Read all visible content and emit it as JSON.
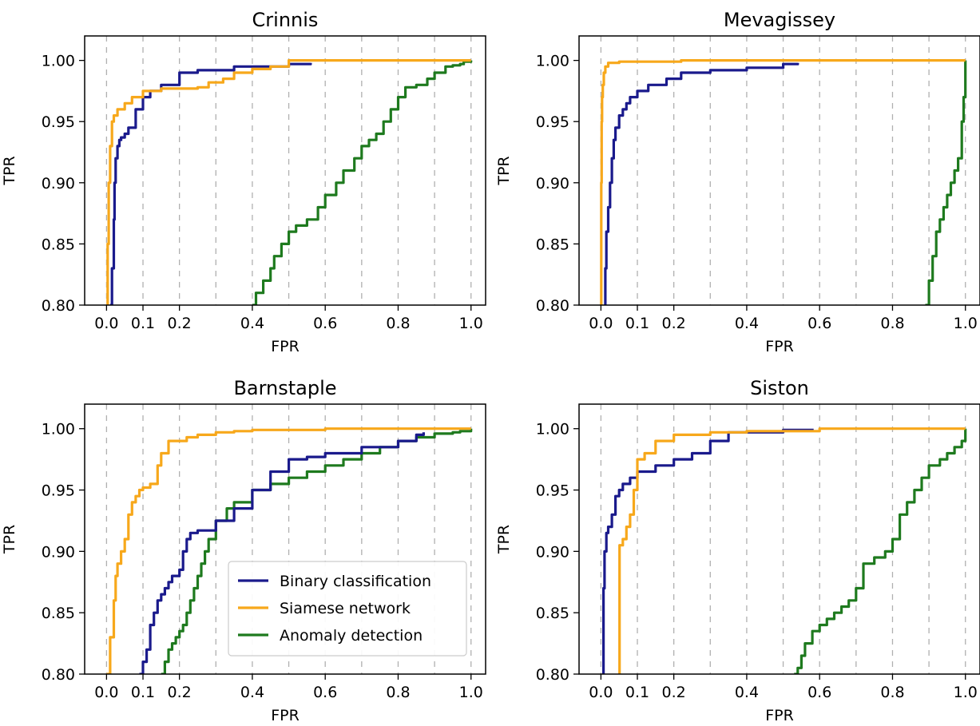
{
  "colors": {
    "binary": "#1a1a8c",
    "siamese": "#f7a81b",
    "anomaly": "#1e7a1e",
    "gridline": "#b0b0b0"
  },
  "legend": {
    "entries": [
      {
        "name": "Binary classification",
        "color": "#1a1a8c"
      },
      {
        "name": "Siamese network",
        "color": "#f7a81b"
      },
      {
        "name": "Anomaly detection",
        "color": "#1e7a1e"
      }
    ],
    "placement": "lower-right of Barnstaple panel"
  },
  "chart_data": [
    {
      "type": "line",
      "title": "Crinnis",
      "xlabel": "FPR",
      "ylabel": "TPR",
      "xlim": [
        -0.06,
        1.04
      ],
      "ylim": [
        0.8,
        1.02
      ],
      "xticks": [
        "0.0",
        "0.1",
        "0.2",
        "0.4",
        "0.6",
        "0.8",
        "1.0"
      ],
      "yticks": [
        "0.80",
        "0.85",
        "0.90",
        "0.95",
        "1.00"
      ],
      "vgrid": [
        0.0,
        0.1,
        0.2,
        0.3,
        0.4,
        0.5,
        0.6,
        0.7,
        0.8,
        0.9,
        1.0
      ],
      "legend": false,
      "series": [
        {
          "key": "binary",
          "x": [
            0.01,
            0.015,
            0.02,
            0.022,
            0.025,
            0.03,
            0.035,
            0.04,
            0.05,
            0.06,
            0.08,
            0.1,
            0.12,
            0.15,
            0.2,
            0.25,
            0.35,
            0.5,
            0.56
          ],
          "y": [
            0.8,
            0.83,
            0.87,
            0.9,
            0.92,
            0.93,
            0.935,
            0.937,
            0.94,
            0.945,
            0.96,
            0.97,
            0.975,
            0.98,
            0.99,
            0.992,
            0.995,
            0.997,
            0.998
          ]
        },
        {
          "key": "siamese",
          "x": [
            0.0,
            0.003,
            0.006,
            0.01,
            0.015,
            0.02,
            0.03,
            0.05,
            0.07,
            0.1,
            0.15,
            0.25,
            0.28,
            0.32,
            0.35,
            0.4,
            0.45,
            0.5,
            0.6,
            0.8,
            1.0
          ],
          "y": [
            0.8,
            0.85,
            0.9,
            0.93,
            0.95,
            0.955,
            0.96,
            0.965,
            0.97,
            0.975,
            0.977,
            0.978,
            0.982,
            0.985,
            0.99,
            0.993,
            0.995,
            1.0,
            1.0,
            1.0,
            1.0
          ]
        },
        {
          "key": "anomaly",
          "x": [
            0.4,
            0.41,
            0.43,
            0.45,
            0.46,
            0.48,
            0.5,
            0.52,
            0.55,
            0.58,
            0.6,
            0.63,
            0.65,
            0.68,
            0.7,
            0.72,
            0.74,
            0.76,
            0.78,
            0.8,
            0.82,
            0.85,
            0.88,
            0.9,
            0.93,
            0.95,
            0.97,
            0.98,
            1.0
          ],
          "y": [
            0.8,
            0.81,
            0.82,
            0.83,
            0.84,
            0.85,
            0.86,
            0.865,
            0.87,
            0.88,
            0.89,
            0.9,
            0.91,
            0.92,
            0.93,
            0.935,
            0.94,
            0.95,
            0.96,
            0.97,
            0.978,
            0.98,
            0.985,
            0.99,
            0.995,
            0.996,
            0.997,
            0.999,
            1.0
          ]
        }
      ]
    },
    {
      "type": "line",
      "title": "Mevagissey",
      "xlabel": "FPR",
      "ylabel": "TPR",
      "xlim": [
        -0.06,
        1.04
      ],
      "ylim": [
        0.8,
        1.02
      ],
      "xticks": [
        "0.0",
        "0.1",
        "0.2",
        "0.4",
        "0.6",
        "0.8",
        "1.0"
      ],
      "yticks": [
        "0.80",
        "0.85",
        "0.90",
        "0.95",
        "1.00"
      ],
      "vgrid": [
        0.0,
        0.1,
        0.2,
        0.3,
        0.4,
        0.5,
        0.6,
        0.7,
        0.8,
        0.9,
        1.0
      ],
      "legend": false,
      "series": [
        {
          "key": "binary",
          "x": [
            0.01,
            0.012,
            0.015,
            0.02,
            0.025,
            0.03,
            0.035,
            0.04,
            0.05,
            0.06,
            0.07,
            0.08,
            0.1,
            0.13,
            0.18,
            0.22,
            0.3,
            0.4,
            0.5,
            0.54
          ],
          "y": [
            0.8,
            0.83,
            0.86,
            0.88,
            0.9,
            0.92,
            0.935,
            0.945,
            0.955,
            0.96,
            0.965,
            0.97,
            0.975,
            0.98,
            0.985,
            0.99,
            0.992,
            0.994,
            0.997,
            0.998
          ]
        },
        {
          "key": "siamese",
          "x": [
            0.0,
            0.001,
            0.002,
            0.003,
            0.005,
            0.008,
            0.012,
            0.02,
            0.05,
            0.2,
            0.22,
            0.5,
            1.0
          ],
          "y": [
            0.8,
            0.9,
            0.95,
            0.97,
            0.98,
            0.99,
            0.995,
            0.998,
            0.999,
            0.999,
            1.0,
            1.0,
            1.0
          ]
        },
        {
          "key": "anomaly",
          "x": [
            0.89,
            0.9,
            0.91,
            0.92,
            0.93,
            0.94,
            0.95,
            0.96,
            0.97,
            0.98,
            0.99,
            0.995,
            1.0
          ],
          "y": [
            0.8,
            0.82,
            0.84,
            0.86,
            0.87,
            0.88,
            0.89,
            0.9,
            0.91,
            0.92,
            0.95,
            0.97,
            1.0
          ]
        }
      ]
    },
    {
      "type": "line",
      "title": "Barnstaple",
      "xlabel": "FPR",
      "ylabel": "TPR",
      "xlim": [
        -0.06,
        1.04
      ],
      "ylim": [
        0.8,
        1.02
      ],
      "xticks": [
        "0.0",
        "0.1",
        "0.2",
        "0.4",
        "0.6",
        "0.8",
        "1.0"
      ],
      "yticks": [
        "0.80",
        "0.85",
        "0.90",
        "0.95",
        "1.00"
      ],
      "vgrid": [
        0.0,
        0.1,
        0.2,
        0.3,
        0.4,
        0.5,
        0.6,
        0.7,
        0.8,
        0.9,
        1.0
      ],
      "legend": true,
      "series": [
        {
          "key": "binary",
          "x": [
            0.09,
            0.1,
            0.11,
            0.12,
            0.13,
            0.14,
            0.15,
            0.16,
            0.17,
            0.18,
            0.2,
            0.21,
            0.22,
            0.23,
            0.25,
            0.3,
            0.35,
            0.4,
            0.45,
            0.5,
            0.55,
            0.6,
            0.7,
            0.8,
            0.85,
            0.87
          ],
          "y": [
            0.8,
            0.81,
            0.82,
            0.84,
            0.85,
            0.86,
            0.865,
            0.87,
            0.875,
            0.88,
            0.885,
            0.9,
            0.91,
            0.915,
            0.917,
            0.925,
            0.935,
            0.95,
            0.965,
            0.975,
            0.977,
            0.98,
            0.985,
            0.99,
            0.995,
            0.997
          ]
        },
        {
          "key": "siamese",
          "x": [
            0.0,
            0.01,
            0.02,
            0.025,
            0.03,
            0.04,
            0.05,
            0.06,
            0.07,
            0.08,
            0.09,
            0.1,
            0.12,
            0.14,
            0.15,
            0.17,
            0.19,
            0.22,
            0.25,
            0.3,
            0.35,
            0.4,
            0.6,
            0.8,
            1.0
          ],
          "y": [
            0.8,
            0.83,
            0.86,
            0.88,
            0.89,
            0.9,
            0.91,
            0.93,
            0.94,
            0.945,
            0.95,
            0.952,
            0.955,
            0.97,
            0.98,
            0.99,
            0.99,
            0.993,
            0.995,
            0.997,
            0.998,
            0.999,
            1.0,
            1.0,
            1.0
          ]
        },
        {
          "key": "anomaly",
          "x": [
            0.15,
            0.16,
            0.17,
            0.18,
            0.19,
            0.2,
            0.21,
            0.22,
            0.23,
            0.24,
            0.25,
            0.26,
            0.27,
            0.28,
            0.3,
            0.33,
            0.35,
            0.4,
            0.45,
            0.5,
            0.55,
            0.6,
            0.65,
            0.7,
            0.75,
            0.8,
            0.85,
            0.9,
            0.95,
            0.97,
            1.0
          ],
          "y": [
            0.8,
            0.81,
            0.82,
            0.825,
            0.83,
            0.835,
            0.84,
            0.85,
            0.86,
            0.87,
            0.88,
            0.89,
            0.9,
            0.91,
            0.925,
            0.935,
            0.94,
            0.95,
            0.955,
            0.96,
            0.965,
            0.97,
            0.975,
            0.98,
            0.985,
            0.99,
            0.993,
            0.996,
            0.997,
            0.998,
            1.0
          ]
        }
      ]
    },
    {
      "type": "line",
      "title": "Siston",
      "xlabel": "FPR",
      "ylabel": "TPR",
      "xlim": [
        -0.06,
        1.04
      ],
      "ylim": [
        0.8,
        1.02
      ],
      "xticks": [
        "0.0",
        "0.1",
        "0.2",
        "0.4",
        "0.6",
        "0.8",
        "1.0"
      ],
      "yticks": [
        "0.80",
        "0.85",
        "0.90",
        "0.95",
        "1.00"
      ],
      "vgrid": [
        0.0,
        0.1,
        0.2,
        0.3,
        0.4,
        0.5,
        0.6,
        0.7,
        0.8,
        0.9,
        1.0
      ],
      "legend": false,
      "series": [
        {
          "key": "binary",
          "x": [
            0.005,
            0.007,
            0.01,
            0.015,
            0.02,
            0.03,
            0.04,
            0.05,
            0.06,
            0.08,
            0.1,
            0.15,
            0.2,
            0.25,
            0.3,
            0.35,
            0.5,
            0.58
          ],
          "y": [
            0.8,
            0.87,
            0.9,
            0.915,
            0.92,
            0.93,
            0.945,
            0.95,
            0.955,
            0.96,
            0.965,
            0.97,
            0.975,
            0.98,
            0.99,
            0.997,
            0.999,
            1.0
          ]
        },
        {
          "key": "siamese",
          "x": [
            0.05,
            0.051,
            0.06,
            0.07,
            0.08,
            0.09,
            0.1,
            0.12,
            0.15,
            0.2,
            0.3,
            0.4,
            0.6,
            0.8,
            1.0
          ],
          "y": [
            0.8,
            0.905,
            0.91,
            0.92,
            0.93,
            0.95,
            0.975,
            0.98,
            0.99,
            0.995,
            0.997,
            0.998,
            1.0,
            1.0,
            1.0
          ]
        },
        {
          "key": "anomaly",
          "x": [
            0.53,
            0.54,
            0.55,
            0.56,
            0.58,
            0.6,
            0.62,
            0.64,
            0.66,
            0.68,
            0.7,
            0.72,
            0.75,
            0.78,
            0.8,
            0.82,
            0.84,
            0.86,
            0.88,
            0.9,
            0.93,
            0.95,
            0.97,
            0.99,
            1.0
          ],
          "y": [
            0.8,
            0.805,
            0.815,
            0.825,
            0.835,
            0.84,
            0.845,
            0.85,
            0.855,
            0.86,
            0.87,
            0.89,
            0.895,
            0.9,
            0.91,
            0.93,
            0.94,
            0.95,
            0.96,
            0.97,
            0.975,
            0.98,
            0.985,
            0.99,
            1.0
          ]
        }
      ]
    }
  ]
}
